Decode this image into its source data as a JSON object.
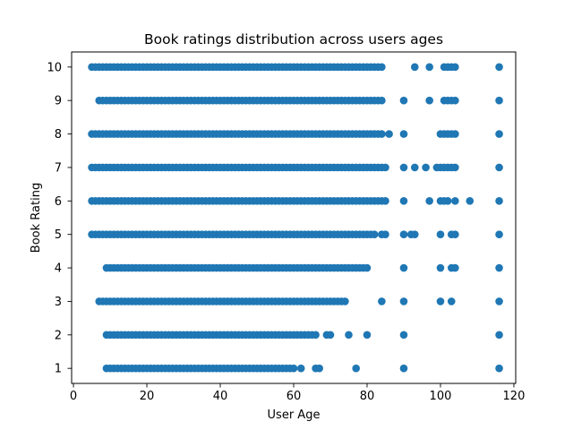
{
  "chart_data": {
    "type": "scatter",
    "title": "Book ratings distribution across users ages",
    "xlabel": "User Age",
    "ylabel": "Book Rating",
    "xlim": [
      -0.5,
      120.5
    ],
    "ylim": [
      0.55,
      10.45
    ],
    "xticks": [
      0,
      20,
      40,
      60,
      80,
      100,
      120
    ],
    "yticks": [
      1,
      2,
      3,
      4,
      5,
      6,
      7,
      8,
      9,
      10
    ],
    "grid": false,
    "marker_color": "#1f77b4",
    "rows": [
      {
        "rating": 10,
        "dense": [
          5,
          80
        ],
        "sparse": [
          81,
          82,
          83,
          84,
          93,
          97,
          101,
          102,
          103,
          104,
          116
        ]
      },
      {
        "rating": 9,
        "dense": [
          7,
          82
        ],
        "sparse": [
          83,
          84,
          90,
          97,
          101,
          102,
          103,
          104,
          116
        ]
      },
      {
        "rating": 8,
        "dense": [
          5,
          82
        ],
        "sparse": [
          83,
          84,
          86,
          90,
          100,
          101,
          102,
          103,
          104,
          116
        ]
      },
      {
        "rating": 7,
        "dense": [
          5,
          83
        ],
        "sparse": [
          84,
          85,
          90,
          93,
          96,
          99,
          100,
          101,
          102,
          103,
          104,
          116
        ]
      },
      {
        "rating": 6,
        "dense": [
          5,
          84
        ],
        "sparse": [
          85,
          90,
          97,
          100,
          101,
          102,
          104,
          108,
          116
        ]
      },
      {
        "rating": 5,
        "dense": [
          5,
          81
        ],
        "sparse": [
          82,
          84,
          85,
          90,
          92,
          93,
          100,
          103,
          104,
          116
        ]
      },
      {
        "rating": 4,
        "dense": [
          9,
          78
        ],
        "sparse": [
          79,
          80,
          90,
          100,
          103,
          104,
          116
        ]
      },
      {
        "rating": 3,
        "dense": [
          7,
          74
        ],
        "sparse": [
          84,
          90,
          100,
          103,
          116
        ]
      },
      {
        "rating": 2,
        "dense": [
          9,
          66
        ],
        "sparse": [
          69,
          70,
          75,
          80,
          90,
          116
        ]
      },
      {
        "rating": 1,
        "dense": [
          9,
          60
        ],
        "sparse": [
          62,
          66,
          67,
          77,
          90,
          116
        ]
      }
    ]
  }
}
